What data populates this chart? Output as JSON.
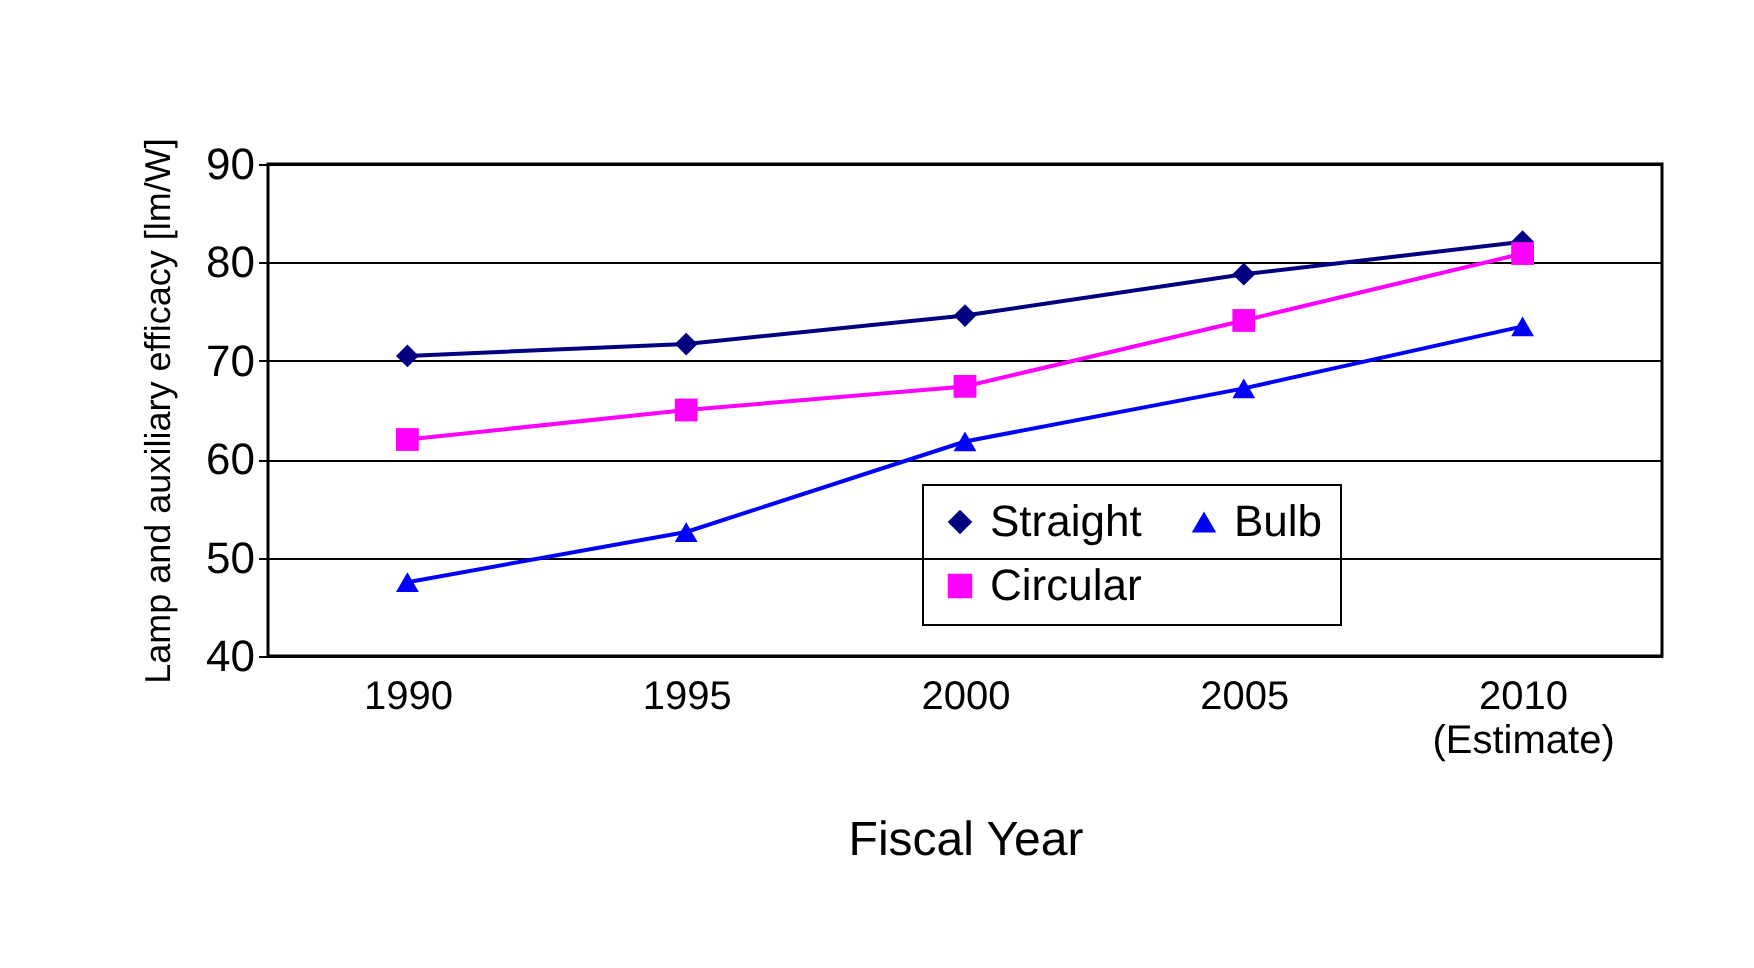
{
  "chart_data": {
    "type": "line",
    "xlabel": "Fiscal Year",
    "ylabel": "Lamp and auxiliary efficacy [lm/W]",
    "categories": [
      "1990",
      "1995",
      "2000",
      "2005",
      "2010 (Estimate)"
    ],
    "series": [
      {
        "name": "Straight",
        "color": "#000080",
        "marker": "diamond",
        "values": [
          70.5,
          71.7,
          74.6,
          78.8,
          82.1
        ]
      },
      {
        "name": "Circular",
        "color": "#ff00ff",
        "marker": "square",
        "values": [
          62.0,
          65.0,
          67.4,
          74.1,
          80.9
        ]
      },
      {
        "name": "Bulb",
        "color": "#0000ff",
        "marker": "triangle",
        "values": [
          47.5,
          52.6,
          61.8,
          67.2,
          73.5
        ]
      }
    ],
    "ylim": [
      40,
      90
    ],
    "yticks": [
      40,
      50,
      60,
      70,
      80,
      90
    ],
    "grid": "y",
    "legend": "bottom right",
    "line_style": "solid"
  }
}
